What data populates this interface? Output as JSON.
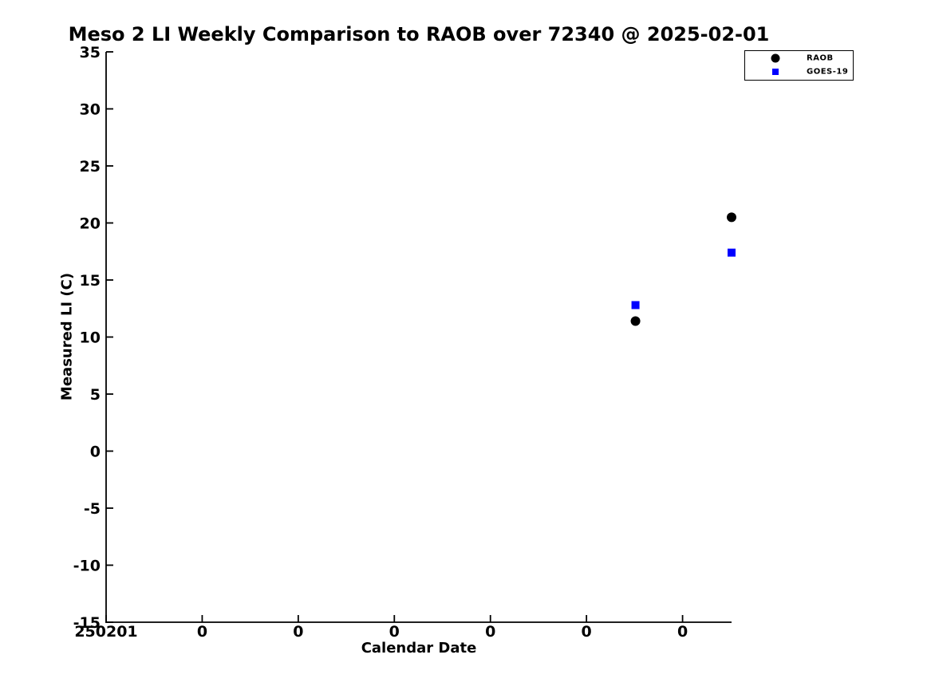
{
  "chart_data": {
    "type": "scatter",
    "title": "Meso 2 LI Weekly Comparison to RAOB over 72340 @ 2025-02-01",
    "xlabel": "Calendar Date",
    "ylabel": "Measured LI (C)",
    "xlim": [
      0,
      6.51
    ],
    "ylim": [
      -15,
      35
    ],
    "grid": false,
    "x_ticks": [
      {
        "pos": 0,
        "label": "250201"
      },
      {
        "pos": 1,
        "label": "0"
      },
      {
        "pos": 2,
        "label": "0"
      },
      {
        "pos": 3,
        "label": "0"
      },
      {
        "pos": 4,
        "label": "0"
      },
      {
        "pos": 5,
        "label": "0"
      },
      {
        "pos": 6,
        "label": "0"
      }
    ],
    "y_ticks": [
      35,
      30,
      25,
      20,
      15,
      10,
      5,
      0,
      -5,
      -10,
      -15
    ],
    "series": [
      {
        "name": "RAOB",
        "marker": "circle",
        "color": "#000000",
        "points": [
          {
            "x": 5.51,
            "y": 11.4
          },
          {
            "x": 6.51,
            "y": 20.5
          }
        ]
      },
      {
        "name": "GOES-19",
        "marker": "square",
        "color": "#0000ff",
        "points": [
          {
            "x": 5.51,
            "y": 12.8
          },
          {
            "x": 6.51,
            "y": 17.4
          }
        ]
      }
    ],
    "legend": {
      "position": "top-right",
      "entries": [
        "RAOB",
        "GOES-19"
      ]
    },
    "colors": {
      "axis": "#000000",
      "background": "#ffffff"
    }
  }
}
